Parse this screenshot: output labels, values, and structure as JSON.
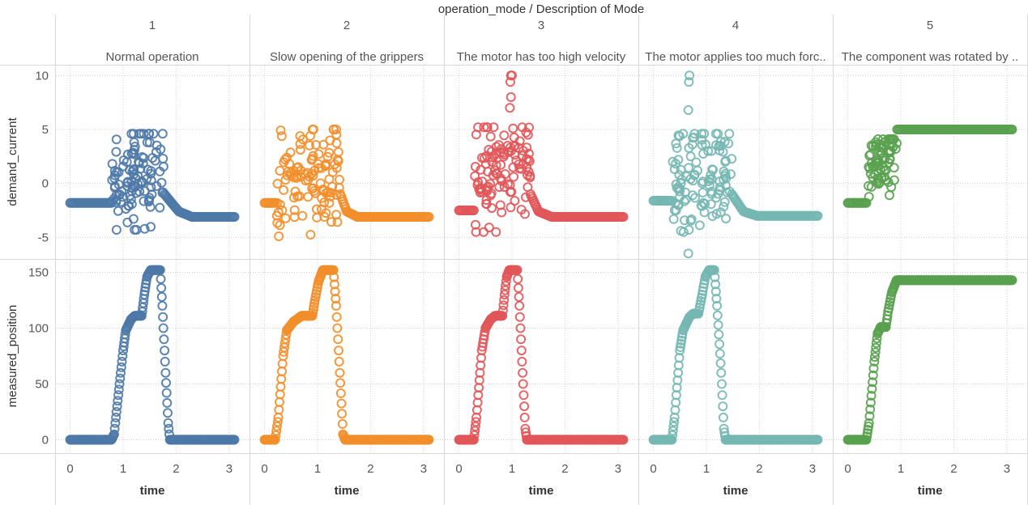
{
  "chart_data": {
    "type": "scatter",
    "title": "operation_mode / Description of Mode",
    "facet_label": "operation_mode / Description of Mode",
    "xlabel": "time",
    "x_ticks": [
      0,
      1,
      2,
      3
    ],
    "xlim": [
      -0.1,
      3.2
    ],
    "rows": [
      {
        "ylabel": "demand_current",
        "ylim": [
          -7,
          11
        ],
        "y_ticks": [
          10,
          5,
          0,
          -5
        ],
        "y_tick_labels": [
          "10",
          "5",
          "0",
          "-5"
        ]
      },
      {
        "ylabel": "measured_position",
        "ylim": [
          -12,
          162
        ],
        "y_ticks": [
          150,
          100,
          50,
          0
        ],
        "y_tick_labels": [
          "150",
          "100",
          "50",
          "0"
        ]
      }
    ],
    "panels": [
      {
        "mode": "1",
        "description": "Normal operation",
        "color": "#4e79a7",
        "demand_current": {
          "segments": [
            [
              0,
              -1.8
            ],
            [
              0.78,
              -1.8
            ]
          ],
          "cluster": {
            "x_range": [
              0.78,
              1.78
            ],
            "y_range": [
              -4.3,
              4.6
            ],
            "n": 110,
            "seed": 11
          },
          "tail": [
            [
              1.78,
              -1.0
            ],
            [
              2.05,
              -2.6
            ],
            [
              2.3,
              -3.1
            ],
            [
              3.1,
              -3.1
            ]
          ]
        },
        "measured_position": [
          [
            0,
            0
          ],
          [
            0.78,
            0
          ],
          [
            0.83,
            5
          ],
          [
            1.0,
            80
          ],
          [
            1.05,
            98
          ],
          [
            1.15,
            108
          ],
          [
            1.22,
            111
          ],
          [
            1.35,
            111
          ],
          [
            1.4,
            130
          ],
          [
            1.45,
            146
          ],
          [
            1.52,
            152
          ],
          [
            1.7,
            152
          ],
          [
            1.74,
            120
          ],
          [
            1.8,
            60
          ],
          [
            1.85,
            15
          ],
          [
            1.88,
            0
          ],
          [
            3.1,
            0
          ]
        ]
      },
      {
        "mode": "2",
        "description": "Slow opening of the grippers",
        "color": "#f28e2b",
        "demand_current": {
          "segments": [
            [
              0,
              -1.8
            ],
            [
              0.2,
              -1.8
            ]
          ],
          "cluster": {
            "x_range": [
              0.22,
              1.43
            ],
            "y_range": [
              -5.0,
              5.0
            ],
            "n": 110,
            "seed": 23
          },
          "tail": [
            [
              1.43,
              -1.0
            ],
            [
              1.55,
              -2.6
            ],
            [
              1.75,
              -3.1
            ],
            [
              3.1,
              -3.1
            ]
          ]
        },
        "measured_position": [
          [
            0,
            0
          ],
          [
            0.2,
            0
          ],
          [
            0.26,
            20
          ],
          [
            0.35,
            75
          ],
          [
            0.42,
            98
          ],
          [
            0.55,
            106
          ],
          [
            0.7,
            111
          ],
          [
            0.9,
            111
          ],
          [
            0.95,
            125
          ],
          [
            1.02,
            142
          ],
          [
            1.1,
            152
          ],
          [
            1.3,
            152
          ],
          [
            1.35,
            120
          ],
          [
            1.42,
            60
          ],
          [
            1.48,
            5
          ],
          [
            1.52,
            0
          ],
          [
            3.1,
            0
          ]
        ]
      },
      {
        "mode": "3",
        "description": "The motor has too high velocity",
        "color": "#e15759",
        "demand_current": {
          "segments": [
            [
              0,
              -2.5
            ],
            [
              0.28,
              -2.5
            ]
          ],
          "cluster": {
            "x_range": [
              0.3,
              1.35
            ],
            "y_range": [
              -4.5,
              5.2
            ],
            "n": 110,
            "seed": 37
          },
          "extra": [
            [
              0.98,
              10
            ],
            [
              1.0,
              10
            ],
            [
              0.97,
              9.4
            ],
            [
              0.98,
              8.0
            ],
            [
              0.96,
              7.0
            ],
            [
              1.02,
              5.1
            ]
          ],
          "tail": [
            [
              1.35,
              -1.0
            ],
            [
              1.5,
              -2.6
            ],
            [
              1.75,
              -3.1
            ],
            [
              3.1,
              -3.1
            ]
          ]
        },
        "measured_position": [
          [
            0,
            0
          ],
          [
            0.28,
            0
          ],
          [
            0.33,
            20
          ],
          [
            0.43,
            80
          ],
          [
            0.5,
            100
          ],
          [
            0.6,
            108
          ],
          [
            0.68,
            111
          ],
          [
            0.82,
            111
          ],
          [
            0.86,
            130
          ],
          [
            0.9,
            146
          ],
          [
            0.95,
            152
          ],
          [
            1.1,
            152
          ],
          [
            1.14,
            120
          ],
          [
            1.2,
            60
          ],
          [
            1.25,
            10
          ],
          [
            1.28,
            0
          ],
          [
            3.1,
            0
          ]
        ]
      },
      {
        "mode": "4",
        "description": "The motor applies too much forc..",
        "color": "#76b7b2",
        "demand_current": {
          "segments": [
            [
              0,
              -1.6
            ],
            [
              0.35,
              -1.6
            ]
          ],
          "cluster": {
            "x_range": [
              0.35,
              1.48
            ],
            "y_range": [
              -4.5,
              4.6
            ],
            "n": 110,
            "seed": 53
          },
          "extra": [
            [
              0.68,
              10
            ],
            [
              0.67,
              9.4
            ],
            [
              0.66,
              6.8
            ],
            [
              0.67,
              -4.3
            ],
            [
              0.66,
              -6.5
            ]
          ],
          "tail": [
            [
              1.48,
              -1.0
            ],
            [
              1.7,
              -2.6
            ],
            [
              1.95,
              -3.0
            ],
            [
              3.1,
              -3.0
            ]
          ]
        },
        "measured_position": [
          [
            0,
            0
          ],
          [
            0.35,
            0
          ],
          [
            0.4,
            20
          ],
          [
            0.5,
            80
          ],
          [
            0.56,
            98
          ],
          [
            0.68,
            110
          ],
          [
            0.75,
            113
          ],
          [
            0.85,
            113
          ],
          [
            0.92,
            130
          ],
          [
            0.98,
            146
          ],
          [
            1.05,
            152
          ],
          [
            1.15,
            152
          ],
          [
            1.2,
            120
          ],
          [
            1.28,
            60
          ],
          [
            1.33,
            10
          ],
          [
            1.36,
            0
          ],
          [
            3.1,
            0
          ]
        ]
      },
      {
        "mode": "5",
        "description": "The component was rotated by ..",
        "color": "#59a14f",
        "demand_current": {
          "segments": [
            [
              0,
              -1.8
            ],
            [
              0.35,
              -1.8
            ]
          ],
          "cluster": {
            "x_range": [
              0.35,
              0.93
            ],
            "y_range": [
              -1.6,
              4.1
            ],
            "n": 70,
            "seed": 71
          },
          "tail": [
            [
              0.93,
              5.0
            ],
            [
              3.1,
              5.0
            ]
          ]
        },
        "measured_position": [
          [
            0,
            0
          ],
          [
            0.35,
            0
          ],
          [
            0.4,
            15
          ],
          [
            0.5,
            70
          ],
          [
            0.56,
            95
          ],
          [
            0.62,
            101
          ],
          [
            0.72,
            101
          ],
          [
            0.76,
            115
          ],
          [
            0.83,
            132
          ],
          [
            0.92,
            143
          ],
          [
            3.1,
            143
          ]
        ]
      }
    ]
  }
}
